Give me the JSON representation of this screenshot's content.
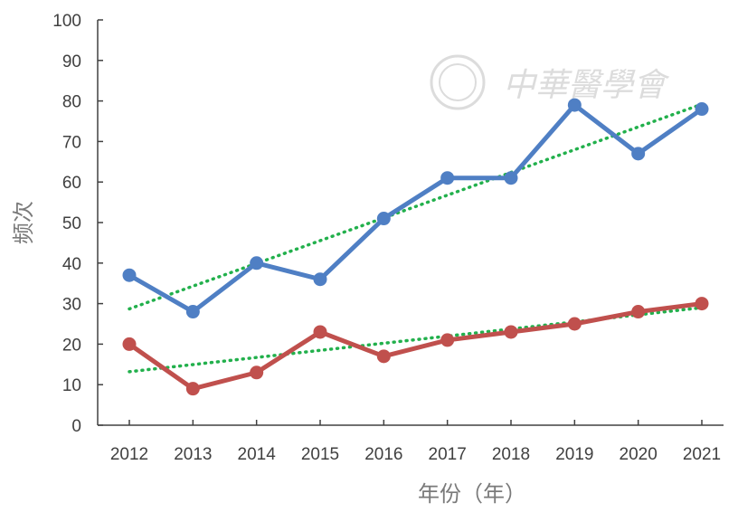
{
  "watermark": {
    "text": "中華醫學會"
  },
  "chart_data": {
    "type": "line",
    "title": "",
    "xlabel": "年份（年）",
    "ylabel": "频次",
    "categories": [
      "2012",
      "2013",
      "2014",
      "2015",
      "2016",
      "2017",
      "2018",
      "2019",
      "2020",
      "2021"
    ],
    "ylim": [
      0,
      100
    ],
    "yticks": [
      "0",
      "10",
      "20",
      "30",
      "40",
      "50",
      "60",
      "70",
      "80",
      "90",
      "100"
    ],
    "grid": false,
    "legend": "none",
    "series": [
      {
        "color": "#4f7fc4",
        "values": [
          37,
          28,
          40,
          36,
          51,
          61,
          61,
          79,
          67,
          78
        ]
      },
      {
        "color": "#c0504d",
        "values": [
          20,
          9,
          13,
          23,
          17,
          21,
          23,
          25,
          28,
          30
        ]
      }
    ],
    "trendlines": [
      {
        "color": "#22b04c",
        "style": "dotted",
        "start": 28.7,
        "end": 79.2
      },
      {
        "color": "#22b04c",
        "style": "dotted",
        "start": 13.2,
        "end": 29.0
      }
    ]
  }
}
